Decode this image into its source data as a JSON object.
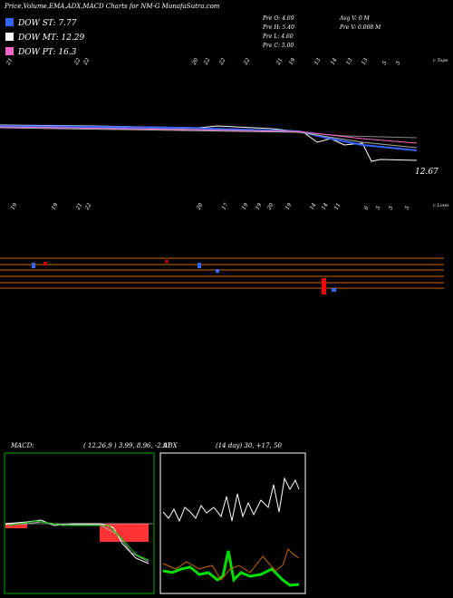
{
  "header": {
    "title": "Price,Volume,EMA,ADX,MACD Charts for NM-G MunafaSutra.com"
  },
  "legend": [
    {
      "label": "DOW ST: 7.77",
      "color": "#3366ff"
    },
    {
      "label": "DOW MT: 12.29",
      "color": "#ffffff"
    },
    {
      "label": "DOW PT: 16.3",
      "color": "#ff66cc"
    }
  ],
  "info": [
    "Pre  O: 4.69",
    "Pre  H: 5.40",
    "Pre  L: 4.60",
    "Pre  C: 5.00",
    "Avg  V: 0  M",
    "Pre  V: 0.008  M"
  ],
  "price_panel": {
    "last_price": "12.67",
    "tops_label": "c Tops",
    "lows_label": "c Lows",
    "top_labels": [
      "21",
      "22",
      "22",
      "20",
      "22",
      "22",
      "22",
      "21",
      "19",
      "13",
      "14",
      "13",
      "13",
      "5",
      "5"
    ],
    "low_labels": [
      "19",
      "19",
      "21",
      "22",
      "20",
      "17",
      "19",
      "19",
      "20",
      "19",
      "14",
      "14",
      "11",
      "6",
      "5",
      "5",
      "5"
    ]
  },
  "macd": {
    "label": "MACD:",
    "params": "( 12,26,9 ) 3.99, 8.96, -2.97"
  },
  "adx": {
    "label": "ADX",
    "params": "(14  day) 30, +17, 50"
  }
}
